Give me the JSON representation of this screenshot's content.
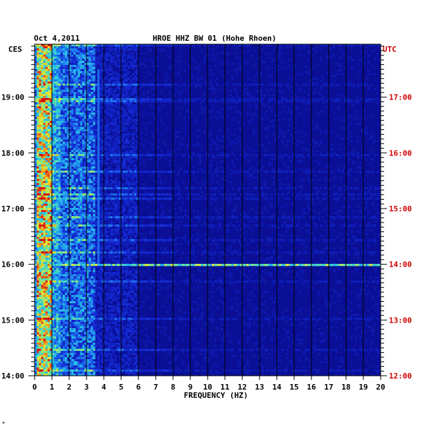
{
  "chart_data": {
    "type": "heatmap",
    "title": {
      "date": "Oct 4,2011",
      "station": "HROE HHZ BW 01 (Hohe Rhoen)"
    },
    "xlabel": "FREQUENCY (HZ)",
    "xlim": [
      0,
      20
    ],
    "x_ticks": [
      "0",
      "1",
      "2",
      "3",
      "4",
      "5",
      "6",
      "7",
      "8",
      "9",
      "10",
      "11",
      "12",
      "13",
      "14",
      "15",
      "16",
      "17",
      "18",
      "19",
      "20"
    ],
    "left_axis": {
      "label": "CES",
      "ticks": [
        {
          "label": "14:00",
          "hour": 14
        },
        {
          "label": "15:00",
          "hour": 15
        },
        {
          "label": "16:00",
          "hour": 16
        },
        {
          "label": "17:00",
          "hour": 17
        },
        {
          "label": "18:00",
          "hour": 18
        },
        {
          "label": "19:00",
          "hour": 19
        }
      ]
    },
    "right_axis": {
      "label": "UTC",
      "ticks": [
        {
          "label": "12:00",
          "hour": 12
        },
        {
          "label": "13:00",
          "hour": 13
        },
        {
          "label": "14:00",
          "hour": 14
        },
        {
          "label": "15:00",
          "hour": 15
        },
        {
          "label": "16:00",
          "hour": 16
        },
        {
          "label": "17:00",
          "hour": 17
        }
      ]
    },
    "ylim_ces": [
      14.0,
      19.95
    ],
    "grid": true,
    "colors": {
      "background": "#0a0f96",
      "grid": "#000000",
      "utc_text": "#cc0000",
      "ces_text": "#000000"
    },
    "features": {
      "low_frequency_band_hz": [
        0.1,
        1.0
      ],
      "broadband_event_ces_hour": 16.0,
      "spectral_line_hz": 3.7
    }
  },
  "footer_mark": "*"
}
